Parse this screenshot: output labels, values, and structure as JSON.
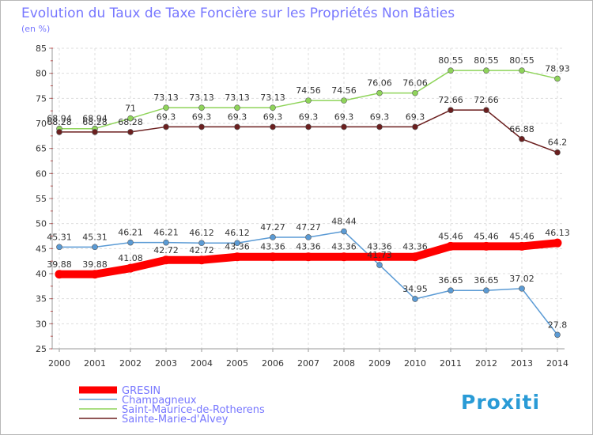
{
  "chart_data": {
    "type": "line",
    "title": "Evolution du Taux de Taxe Foncière sur les Propriétés Non Bâties",
    "ylabel": "(en %)",
    "xlabel": "",
    "ylim": [
      25,
      85
    ],
    "yticks": [
      25,
      30,
      35,
      40,
      45,
      50,
      55,
      60,
      65,
      70,
      75,
      80,
      85
    ],
    "grid": true,
    "categories": [
      "2000",
      "2001",
      "2002",
      "2003",
      "2004",
      "2005",
      "2006",
      "2007",
      "2008",
      "2009",
      "2010",
      "2011",
      "2012",
      "2013",
      "2014"
    ],
    "series": [
      {
        "name": "GRESIN",
        "color": "#ff0000",
        "values": [
          39.88,
          39.88,
          41.08,
          42.72,
          42.72,
          43.36,
          43.36,
          43.36,
          43.36,
          43.36,
          43.36,
          45.46,
          45.46,
          45.46,
          46.13
        ],
        "labels": [
          "39.88",
          "39.88",
          "41.08",
          "42.72",
          "42.72",
          "43.36",
          "43.36",
          "43.36",
          "43.36",
          "43.36",
          "43.36",
          "45.46",
          "45.46",
          "45.46",
          "46.13"
        ]
      },
      {
        "name": "Champagneux",
        "color": "#5b9bd5",
        "values": [
          45.31,
          45.31,
          46.21,
          46.21,
          46.12,
          46.12,
          47.27,
          47.27,
          48.44,
          41.73,
          34.95,
          36.65,
          36.65,
          37.02,
          27.8
        ],
        "labels": [
          "45.31",
          "45.31",
          "46.21",
          "46.21",
          "46.12",
          "46.12",
          "47.27",
          "47.27",
          "48.44",
          "41.73",
          "34.95",
          "36.65",
          "36.65",
          "37.02",
          "27.8"
        ]
      },
      {
        "name": "Saint-Maurice-de-Rotherens",
        "color": "#8fd45a",
        "values": [
          68.94,
          68.94,
          71,
          73.13,
          73.13,
          73.13,
          73.13,
          74.56,
          74.56,
          76.06,
          76.06,
          80.55,
          80.55,
          80.55,
          78.93
        ],
        "labels": [
          "68.94",
          "68.94",
          "71",
          "73.13",
          "73.13",
          "73.13",
          "73.13",
          "74.56",
          "74.56",
          "76.06",
          "76.06",
          "80.55",
          "80.55",
          "80.55",
          "78.93"
        ]
      },
      {
        "name": "Sainte-Marie-d'Alvey",
        "color": "#6b1f1f",
        "values": [
          68.28,
          68.28,
          68.28,
          69.3,
          69.3,
          69.3,
          69.3,
          69.3,
          69.3,
          69.3,
          69.3,
          72.66,
          72.66,
          66.88,
          64.2
        ],
        "labels": [
          "68.28",
          "68.28",
          "68.28",
          "69.3",
          "69.3",
          "69.3",
          "69.3",
          "69.3",
          "69.3",
          "69.3",
          "69.3",
          "72.66",
          "72.66",
          "66.88",
          "64.2"
        ]
      }
    ]
  },
  "logo": {
    "text": "Proxiti"
  }
}
